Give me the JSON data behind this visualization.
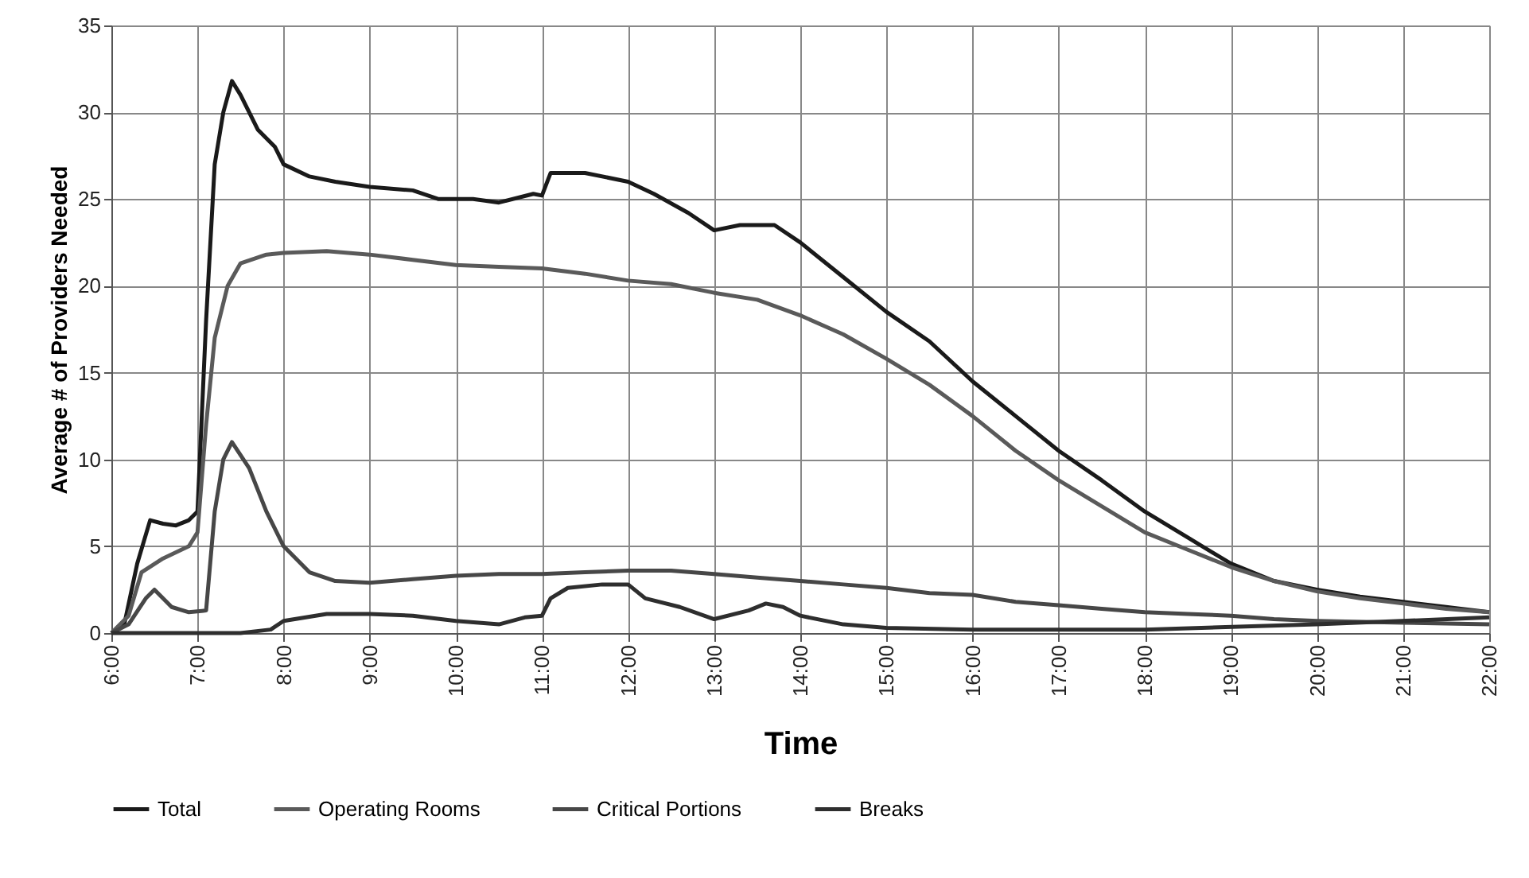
{
  "chart_data": {
    "type": "line",
    "xlabel": "Time",
    "ylabel": "Average # of Providers Needed",
    "xlim": [
      6,
      22
    ],
    "ylim": [
      0,
      35
    ],
    "xticks": [
      {
        "value": 6,
        "label": "6:00"
      },
      {
        "value": 7,
        "label": "7:00"
      },
      {
        "value": 8,
        "label": "8:00"
      },
      {
        "value": 9,
        "label": "9:00"
      },
      {
        "value": 10,
        "label": "10:00"
      },
      {
        "value": 11,
        "label": "11:00"
      },
      {
        "value": 12,
        "label": "12:00"
      },
      {
        "value": 13,
        "label": "13:00"
      },
      {
        "value": 14,
        "label": "14:00"
      },
      {
        "value": 15,
        "label": "15:00"
      },
      {
        "value": 16,
        "label": "16:00"
      },
      {
        "value": 17,
        "label": "17:00"
      },
      {
        "value": 18,
        "label": "18:00"
      },
      {
        "value": 19,
        "label": "19:00"
      },
      {
        "value": 20,
        "label": "20:00"
      },
      {
        "value": 21,
        "label": "21:00"
      },
      {
        "value": 22,
        "label": "22:00"
      }
    ],
    "yticks": [
      0,
      5,
      10,
      15,
      20,
      25,
      30,
      35
    ],
    "grid": true,
    "legend": "bottom",
    "marker": "none",
    "line_style": "solid",
    "series": [
      {
        "name": "Total",
        "color": "#1a1a1a",
        "x": [
          6.0,
          6.15,
          6.3,
          6.45,
          6.6,
          6.75,
          6.9,
          7.0,
          7.1,
          7.2,
          7.3,
          7.4,
          7.5,
          7.7,
          7.9,
          8.0,
          8.3,
          8.6,
          9.0,
          9.5,
          9.8,
          10.2,
          10.5,
          10.9,
          11.0,
          11.1,
          11.5,
          12.0,
          12.3,
          12.7,
          13.0,
          13.3,
          13.7,
          14.0,
          14.5,
          15.0,
          15.5,
          16.0,
          16.5,
          17.0,
          17.5,
          18.0,
          18.5,
          19.0,
          19.5,
          20.0,
          20.5,
          21.0,
          21.5,
          22.0
        ],
        "values": [
          0,
          0.5,
          4,
          6.5,
          6.3,
          6.2,
          6.5,
          7,
          18,
          27,
          30,
          31.8,
          31,
          29,
          28,
          27,
          26.3,
          26,
          25.7,
          25.5,
          25,
          25,
          24.8,
          25.3,
          25.2,
          26.5,
          26.5,
          26,
          25.3,
          24.2,
          23.2,
          23.5,
          23.5,
          22.5,
          20.5,
          18.5,
          16.8,
          14.5,
          12.5,
          10.5,
          8.8,
          7,
          5.5,
          4,
          3,
          2.5,
          2.1,
          1.8,
          1.5,
          1.2
        ]
      },
      {
        "name": "Operating Rooms",
        "color": "#5a5a5a",
        "x": [
          6.0,
          6.2,
          6.35,
          6.6,
          6.9,
          7.0,
          7.1,
          7.2,
          7.35,
          7.5,
          7.8,
          8.0,
          8.5,
          9.0,
          9.5,
          10.0,
          10.5,
          11.0,
          11.5,
          12.0,
          12.5,
          13.0,
          13.5,
          14.0,
          14.5,
          15.0,
          15.5,
          16.0,
          16.5,
          17.0,
          17.5,
          18.0,
          18.5,
          19.0,
          19.5,
          20.0,
          20.5,
          21.0,
          21.5,
          22.0
        ],
        "values": [
          0,
          1,
          3.5,
          4.3,
          5,
          5.8,
          12,
          17,
          20,
          21.3,
          21.8,
          21.9,
          22,
          21.8,
          21.5,
          21.2,
          21.1,
          21,
          20.7,
          20.3,
          20.1,
          19.6,
          19.2,
          18.3,
          17.2,
          15.8,
          14.3,
          12.5,
          10.5,
          8.8,
          7.3,
          5.8,
          4.8,
          3.8,
          3,
          2.4,
          2,
          1.7,
          1.4,
          1.2
        ]
      },
      {
        "name": "Critical Portions",
        "color": "#474747",
        "x": [
          6.0,
          6.2,
          6.4,
          6.5,
          6.7,
          6.9,
          7.1,
          7.2,
          7.3,
          7.4,
          7.6,
          7.8,
          8.0,
          8.3,
          8.6,
          9.0,
          9.5,
          10.0,
          10.5,
          11.0,
          11.5,
          12.0,
          12.5,
          13.0,
          13.5,
          14.0,
          14.5,
          15.0,
          15.5,
          16.0,
          16.5,
          17.0,
          17.5,
          18.0,
          18.5,
          19.0,
          19.5,
          20.0,
          21.0,
          22.0
        ],
        "values": [
          0,
          0.5,
          2,
          2.5,
          1.5,
          1.2,
          1.3,
          7,
          10,
          11,
          9.5,
          7,
          5,
          3.5,
          3,
          2.9,
          3.1,
          3.3,
          3.4,
          3.4,
          3.5,
          3.6,
          3.6,
          3.4,
          3.2,
          3,
          2.8,
          2.6,
          2.3,
          2.2,
          1.8,
          1.6,
          1.4,
          1.2,
          1.1,
          1,
          0.8,
          0.7,
          0.6,
          0.5
        ]
      },
      {
        "name": "Breaks",
        "color": "#2e2e2e",
        "x": [
          6.0,
          7.0,
          7.5,
          7.85,
          8.0,
          8.5,
          9.0,
          9.5,
          10.0,
          10.5,
          10.8,
          11.0,
          11.1,
          11.3,
          11.7,
          12.0,
          12.2,
          12.6,
          13.0,
          13.4,
          13.6,
          13.8,
          14.0,
          14.5,
          15.0,
          16.0,
          17.0,
          18.0,
          20.0,
          22.0
        ],
        "values": [
          0,
          0,
          0,
          0.2,
          0.7,
          1.1,
          1.1,
          1,
          0.7,
          0.5,
          0.9,
          1,
          2,
          2.6,
          2.8,
          2.8,
          2,
          1.5,
          0.8,
          1.3,
          1.7,
          1.5,
          1,
          0.5,
          0.3,
          0.2,
          0.2,
          0.2,
          0.5,
          0.9
        ]
      }
    ]
  }
}
